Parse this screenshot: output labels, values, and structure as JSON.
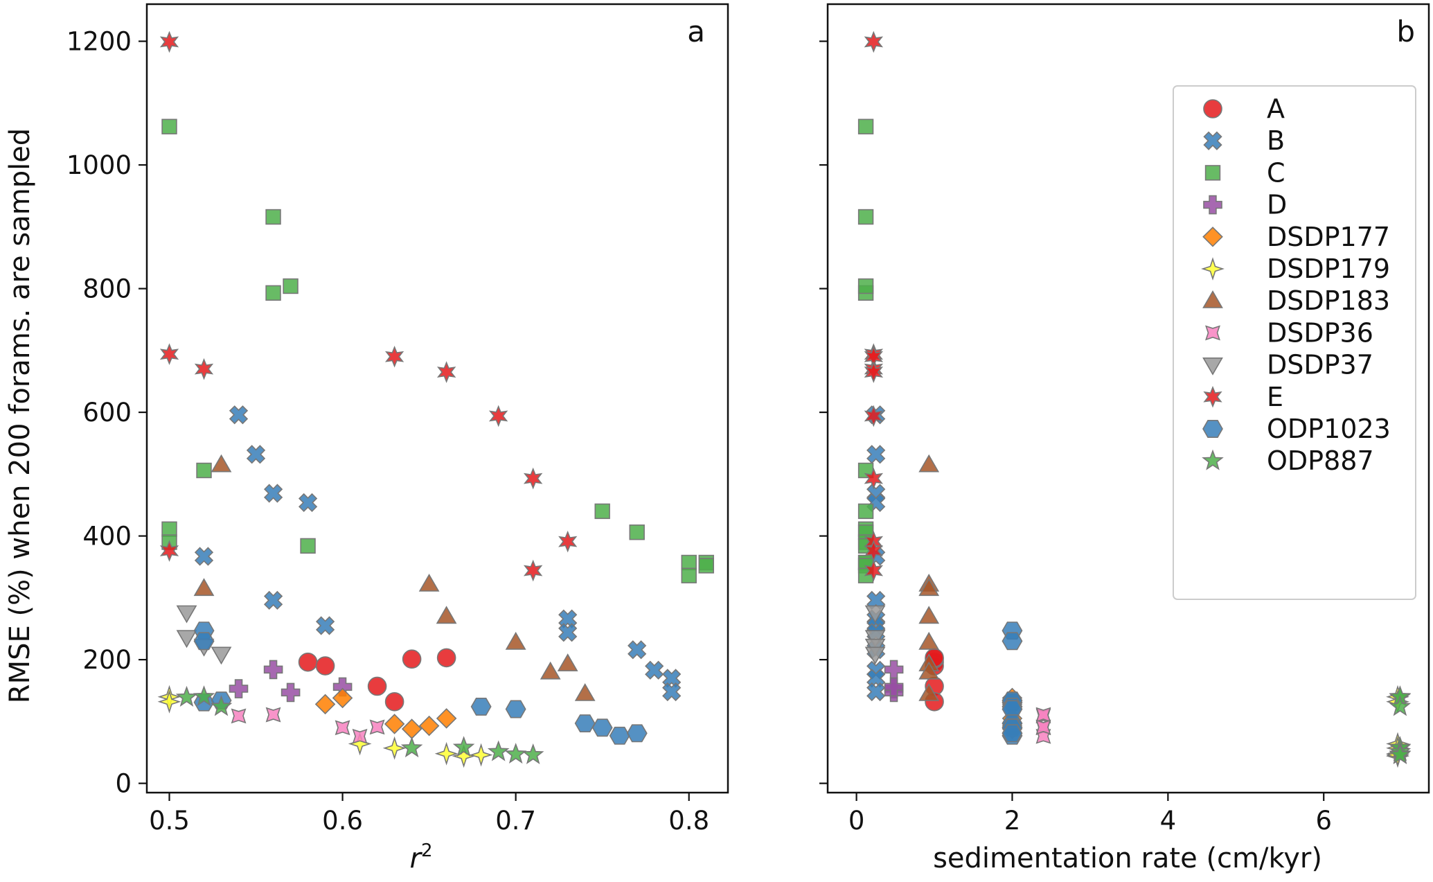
{
  "chart_data": {
    "type": "scatter",
    "ylabel": "RMSE (%) when 200 forams. are sampled",
    "ylim": [
      -15,
      1260
    ],
    "yticks": [
      0,
      200,
      400,
      600,
      800,
      1000,
      1200
    ],
    "ytick_labels": [
      "0",
      "200",
      "400",
      "600",
      "800",
      "1000",
      "1200"
    ],
    "panels": [
      {
        "id": "a",
        "letter": "a",
        "xlabel_main": "r",
        "xlabel_sup": "2",
        "xlim": [
          0.487,
          0.8225
        ],
        "xticks": [
          0.5,
          0.6,
          0.7,
          0.8
        ],
        "xtick_labels": [
          "0.5",
          "0.6",
          "0.7",
          "0.8"
        ],
        "x_field": "r2"
      },
      {
        "id": "b",
        "letter": "b",
        "xlabel_main": "sedimentation rate (cm/kyr)",
        "xlabel_sup": "",
        "xlim": [
          -0.37,
          7.35
        ],
        "xticks": [
          0,
          2,
          4,
          6
        ],
        "xtick_labels": [
          "0",
          "2",
          "4",
          "6"
        ],
        "x_field": "sed"
      }
    ],
    "series": [
      {
        "name": "A",
        "color": "#e41a1c",
        "marker": "circle",
        "points": [
          {
            "r2": 0.58,
            "sed": 1.0,
            "y": 196
          },
          {
            "r2": 0.59,
            "sed": 1.0,
            "y": 190
          },
          {
            "r2": 0.62,
            "sed": 1.0,
            "y": 157
          },
          {
            "r2": 0.63,
            "sed": 1.0,
            "y": 132
          },
          {
            "r2": 0.64,
            "sed": 1.0,
            "y": 201
          },
          {
            "r2": 0.66,
            "sed": 1.0,
            "y": 203
          }
        ]
      },
      {
        "name": "B",
        "color": "#377eb8",
        "marker": "x",
        "points": [
          {
            "r2": 0.52,
            "sed": 0.25,
            "y": 367
          },
          {
            "r2": 0.54,
            "sed": 0.25,
            "y": 596
          },
          {
            "r2": 0.55,
            "sed": 0.25,
            "y": 532
          },
          {
            "r2": 0.56,
            "sed": 0.25,
            "y": 469
          },
          {
            "r2": 0.56,
            "sed": 0.25,
            "y": 296
          },
          {
            "r2": 0.58,
            "sed": 0.25,
            "y": 454
          },
          {
            "r2": 0.59,
            "sed": 0.25,
            "y": 255
          },
          {
            "r2": 0.73,
            "sed": 0.25,
            "y": 266
          },
          {
            "r2": 0.73,
            "sed": 0.25,
            "y": 244
          },
          {
            "r2": 0.77,
            "sed": 0.25,
            "y": 216
          },
          {
            "r2": 0.78,
            "sed": 0.25,
            "y": 183
          },
          {
            "r2": 0.79,
            "sed": 0.25,
            "y": 170
          },
          {
            "r2": 0.79,
            "sed": 0.25,
            "y": 148
          }
        ]
      },
      {
        "name": "C",
        "color": "#4daf4a",
        "marker": "square",
        "points": [
          {
            "r2": 0.5,
            "sed": 0.12,
            "y": 1062
          },
          {
            "r2": 0.56,
            "sed": 0.12,
            "y": 916
          },
          {
            "r2": 0.56,
            "sed": 0.12,
            "y": 793
          },
          {
            "r2": 0.57,
            "sed": 0.12,
            "y": 804
          },
          {
            "r2": 0.52,
            "sed": 0.12,
            "y": 506
          },
          {
            "r2": 0.75,
            "sed": 0.12,
            "y": 440
          },
          {
            "r2": 0.5,
            "sed": 0.12,
            "y": 411
          },
          {
            "r2": 0.77,
            "sed": 0.12,
            "y": 406
          },
          {
            "r2": 0.5,
            "sed": 0.12,
            "y": 390
          },
          {
            "r2": 0.58,
            "sed": 0.12,
            "y": 384
          },
          {
            "r2": 0.8,
            "sed": 0.12,
            "y": 357
          },
          {
            "r2": 0.81,
            "sed": 0.12,
            "y": 357
          },
          {
            "r2": 0.81,
            "sed": 0.12,
            "y": 352
          },
          {
            "r2": 0.8,
            "sed": 0.12,
            "y": 336
          }
        ]
      },
      {
        "name": "D",
        "color": "#984ea3",
        "marker": "plus",
        "points": [
          {
            "r2": 0.54,
            "sed": 0.48,
            "y": 153
          },
          {
            "r2": 0.56,
            "sed": 0.48,
            "y": 184
          },
          {
            "r2": 0.57,
            "sed": 0.48,
            "y": 147
          },
          {
            "r2": 0.6,
            "sed": 0.48,
            "y": 156
          }
        ]
      },
      {
        "name": "DSDP177",
        "color": "#ff7f00",
        "marker": "diamond",
        "points": [
          {
            "r2": 0.59,
            "sed": 2.0,
            "y": 128
          },
          {
            "r2": 0.6,
            "sed": 2.0,
            "y": 138
          },
          {
            "r2": 0.63,
            "sed": 2.0,
            "y": 96
          },
          {
            "r2": 0.64,
            "sed": 2.0,
            "y": 88
          },
          {
            "r2": 0.65,
            "sed": 2.0,
            "y": 93
          },
          {
            "r2": 0.66,
            "sed": 2.0,
            "y": 105
          }
        ]
      },
      {
        "name": "DSDP179",
        "color": "#ffff33",
        "marker": "star4",
        "points": [
          {
            "r2": 0.5,
            "sed": 6.95,
            "y": 140
          },
          {
            "r2": 0.5,
            "sed": 6.95,
            "y": 132
          },
          {
            "r2": 0.61,
            "sed": 6.95,
            "y": 64
          },
          {
            "r2": 0.63,
            "sed": 6.95,
            "y": 57
          },
          {
            "r2": 0.66,
            "sed": 6.95,
            "y": 48
          },
          {
            "r2": 0.67,
            "sed": 6.95,
            "y": 44
          },
          {
            "r2": 0.68,
            "sed": 6.95,
            "y": 46
          }
        ]
      },
      {
        "name": "DSDP183",
        "color": "#a65628",
        "marker": "triangle-up",
        "points": [
          {
            "r2": 0.53,
            "sed": 0.93,
            "y": 515
          },
          {
            "r2": 0.65,
            "sed": 0.93,
            "y": 322
          },
          {
            "r2": 0.52,
            "sed": 0.93,
            "y": 315
          },
          {
            "r2": 0.66,
            "sed": 0.93,
            "y": 270
          },
          {
            "r2": 0.7,
            "sed": 0.93,
            "y": 228
          },
          {
            "r2": 0.73,
            "sed": 0.93,
            "y": 193
          },
          {
            "r2": 0.72,
            "sed": 0.93,
            "y": 180
          },
          {
            "r2": 0.74,
            "sed": 0.93,
            "y": 145
          }
        ]
      },
      {
        "name": "DSDP36",
        "color": "#f781bf",
        "marker": "star4x",
        "points": [
          {
            "r2": 0.54,
            "sed": 2.4,
            "y": 109
          },
          {
            "r2": 0.56,
            "sed": 2.4,
            "y": 111
          },
          {
            "r2": 0.6,
            "sed": 2.4,
            "y": 90
          },
          {
            "r2": 0.61,
            "sed": 2.4,
            "y": 76
          },
          {
            "r2": 0.62,
            "sed": 2.4,
            "y": 91
          }
        ]
      },
      {
        "name": "DSDP37",
        "color": "#999999",
        "marker": "triangle-down",
        "points": [
          {
            "r2": 0.51,
            "sed": 0.24,
            "y": 276
          },
          {
            "r2": 0.51,
            "sed": 0.24,
            "y": 236
          },
          {
            "r2": 0.52,
            "sed": 0.24,
            "y": 222
          },
          {
            "r2": 0.53,
            "sed": 0.24,
            "y": 209
          }
        ]
      },
      {
        "name": "E",
        "color": "#e41a1c",
        "marker": "star6",
        "points": [
          {
            "r2": 0.5,
            "sed": 0.22,
            "y": 1199
          },
          {
            "r2": 0.5,
            "sed": 0.22,
            "y": 694
          },
          {
            "r2": 0.52,
            "sed": 0.22,
            "y": 670
          },
          {
            "r2": 0.63,
            "sed": 0.22,
            "y": 690
          },
          {
            "r2": 0.66,
            "sed": 0.22,
            "y": 665
          },
          {
            "r2": 0.69,
            "sed": 0.22,
            "y": 594
          },
          {
            "r2": 0.71,
            "sed": 0.22,
            "y": 493
          },
          {
            "r2": 0.73,
            "sed": 0.22,
            "y": 391
          },
          {
            "r2": 0.5,
            "sed": 0.22,
            "y": 376
          },
          {
            "r2": 0.71,
            "sed": 0.22,
            "y": 344
          }
        ]
      },
      {
        "name": "ODP1023",
        "color": "#377eb8",
        "marker": "hexagon",
        "points": [
          {
            "r2": 0.52,
            "sed": 2.0,
            "y": 247
          },
          {
            "r2": 0.52,
            "sed": 2.0,
            "y": 230
          },
          {
            "r2": 0.52,
            "sed": 2.0,
            "y": 131
          },
          {
            "r2": 0.53,
            "sed": 2.0,
            "y": 134
          },
          {
            "r2": 0.68,
            "sed": 2.0,
            "y": 124
          },
          {
            "r2": 0.7,
            "sed": 2.0,
            "y": 120
          },
          {
            "r2": 0.74,
            "sed": 2.0,
            "y": 97
          },
          {
            "r2": 0.75,
            "sed": 2.0,
            "y": 90
          },
          {
            "r2": 0.76,
            "sed": 2.0,
            "y": 77
          },
          {
            "r2": 0.77,
            "sed": 2.0,
            "y": 81
          }
        ]
      },
      {
        "name": "ODP887",
        "color": "#4daf4a",
        "marker": "star5",
        "points": [
          {
            "r2": 0.51,
            "sed": 6.98,
            "y": 139
          },
          {
            "r2": 0.52,
            "sed": 6.98,
            "y": 140
          },
          {
            "r2": 0.53,
            "sed": 6.98,
            "y": 124
          },
          {
            "r2": 0.64,
            "sed": 6.98,
            "y": 57
          },
          {
            "r2": 0.67,
            "sed": 6.98,
            "y": 58
          },
          {
            "r2": 0.69,
            "sed": 6.98,
            "y": 51
          },
          {
            "r2": 0.7,
            "sed": 6.98,
            "y": 47
          },
          {
            "r2": 0.71,
            "sed": 6.98,
            "y": 46
          }
        ]
      }
    ],
    "legend": {
      "placement": "upper-right of panel b",
      "entries": [
        "A",
        "B",
        "C",
        "D",
        "DSDP177",
        "DSDP179",
        "DSDP183",
        "DSDP36",
        "DSDP37",
        "E",
        "ODP1023",
        "ODP887"
      ]
    }
  }
}
